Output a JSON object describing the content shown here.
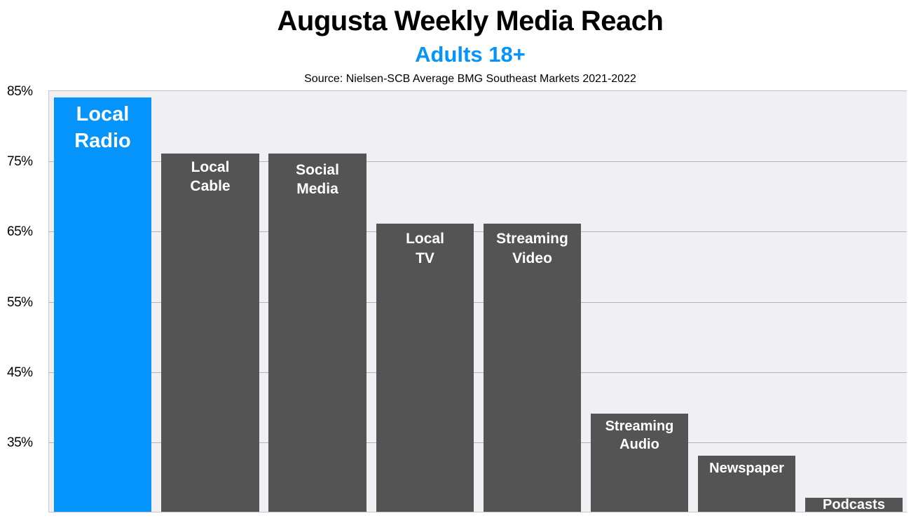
{
  "chart_data": {
    "type": "bar",
    "title": "Augusta Weekly Media Reach",
    "subtitle": "Adults 18+",
    "source": "Source: Nielsen-SCB Average BMG Southeast Markets 2021-2022",
    "xlabel": "",
    "ylabel": "",
    "ylim": [
      25,
      85
    ],
    "yticks": [
      "85%",
      "75%",
      "65%",
      "55%",
      "45%",
      "35%"
    ],
    "grid": true,
    "legend": "none",
    "categories": [
      "Local Radio",
      "Local Cable",
      "Social Media",
      "Local TV",
      "Streaming Video",
      "Streaming Audio",
      "Newspaper",
      "Podcasts"
    ],
    "values": [
      84,
      76,
      76,
      66,
      66,
      39,
      33,
      27
    ],
    "colors": [
      "#0494fc",
      "#545454",
      "#545454",
      "#545454",
      "#545454",
      "#545454",
      "#545454",
      "#545454"
    ]
  },
  "labels": {
    "bar0": "Local\nRadio",
    "bar1": "Local\nCable",
    "bar2": "Social\nMedia",
    "bar3": "Local\nTV",
    "bar4": "Streaming\nVideo",
    "bar5": "Streaming\nAudio",
    "bar6": "Newspaper",
    "bar7": "Podcasts"
  }
}
